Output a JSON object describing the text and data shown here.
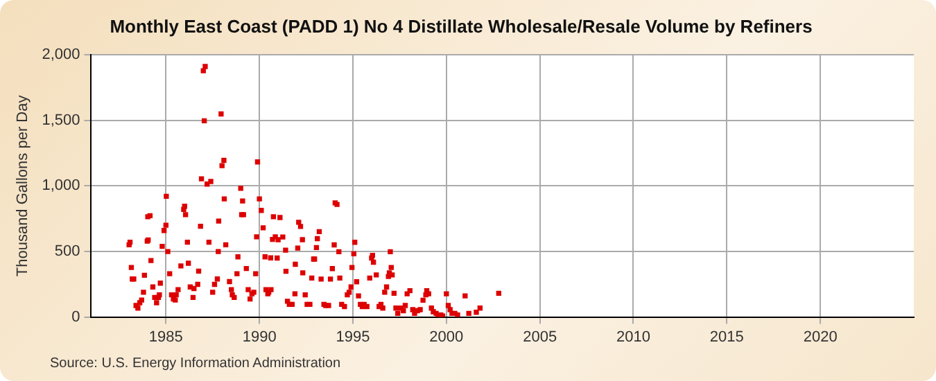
{
  "chart_data": {
    "type": "scatter",
    "title": "Monthly East Coast (PADD 1) No 4 Distillate Wholesale/Resale Volume by Refiners",
    "ylabel": "Thousand Gallons per Day",
    "annotations": [
      "Source: U.S. Energy Information Administration"
    ],
    "marker": "square",
    "grid": true,
    "color": "#dd0000",
    "x": [
      1983.03,
      1983.08,
      1983.15,
      1983.2,
      1983.28,
      1983.4,
      1983.5,
      1983.6,
      1983.7,
      1983.8,
      1983.85,
      1984.0,
      1984.05,
      1984.03,
      1984.15,
      1984.2,
      1984.3,
      1984.4,
      1984.5,
      1984.6,
      1984.65,
      1984.7,
      1984.8,
      1984.9,
      1985.0,
      1985.02,
      1985.1,
      1985.2,
      1985.3,
      1985.4,
      1985.5,
      1985.55,
      1985.65,
      1985.8,
      1985.95,
      1986.0,
      1986.05,
      1986.15,
      1986.2,
      1986.3,
      1986.45,
      1986.5,
      1986.7,
      1986.75,
      1986.85,
      1986.9,
      1987.0,
      1987.1,
      1987.05,
      1987.2,
      1987.4,
      1987.3,
      1987.5,
      1987.6,
      1987.75,
      1987.8,
      1987.82,
      1987.95,
      1988.0,
      1988.1,
      1988.12,
      1988.2,
      1988.4,
      1988.5,
      1988.55,
      1988.65,
      1988.8,
      1988.85,
      1989.0,
      1989.05,
      1989.1,
      1989.15,
      1989.3,
      1989.4,
      1989.5,
      1989.6,
      1989.7,
      1989.8,
      1989.85,
      1989.9,
      1990.0,
      1990.1,
      1990.2,
      1990.3,
      1990.35,
      1990.45,
      1990.5,
      1990.6,
      1990.62,
      1990.7,
      1990.75,
      1990.85,
      1990.95,
      1991.1,
      1991.0,
      1991.25,
      1991.4,
      1991.42,
      1991.5,
      1991.6,
      1991.75,
      1991.9,
      1991.92,
      1992.05,
      1992.1,
      1992.2,
      1992.3,
      1992.32,
      1992.45,
      1992.55,
      1992.7,
      1992.8,
      1992.9,
      1992.95,
      1993.05,
      1993.1,
      1993.2,
      1993.3,
      1993.45,
      1993.55,
      1993.7,
      1993.8,
      1993.9,
      1994.0,
      1994.05,
      1994.15,
      1994.25,
      1994.3,
      1994.4,
      1994.55,
      1994.7,
      1994.8,
      1994.9,
      1994.95,
      1995.05,
      1995.1,
      1995.2,
      1995.3,
      1995.4,
      1995.5,
      1995.6,
      1995.75,
      1995.9,
      1996.0,
      1996.05,
      1996.1,
      1996.25,
      1996.4,
      1996.5,
      1996.6,
      1996.7,
      1996.8,
      1996.9,
      1996.95,
      1997.0,
      1997.05,
      1997.1,
      1997.2,
      1997.3,
      1997.4,
      1997.55,
      1997.7,
      1997.8,
      1997.9,
      1998.05,
      1998.2,
      1998.3,
      1998.45,
      1998.6,
      1998.75,
      1998.9,
      1998.95,
      1999.05,
      1999.2,
      1999.3,
      1999.45,
      1999.55,
      1999.7,
      1999.8,
      2000.0,
      2000.1,
      2000.2,
      2000.3,
      2000.45,
      2000.6,
      2001.0,
      2001.2,
      2001.6,
      2001.8,
      2002.8
    ],
    "values": [
      551,
      571,
      378,
      290,
      290,
      88,
      68,
      109,
      129,
      189,
      318,
      579,
      587,
      765,
      773,
      431,
      229,
      149,
      109,
      149,
      169,
      258,
      539,
      660,
      700,
      921,
      499,
      330,
      169,
      137,
      129,
      169,
      209,
      390,
      821,
      845,
      781,
      571,
      410,
      229,
      149,
      217,
      249,
      350,
      692,
      1054,
      1879,
      1911,
      1497,
      1014,
      1034,
      571,
      189,
      249,
      290,
      499,
      732,
      1549,
      1155,
      1195,
      901,
      551,
      270,
      209,
      169,
      149,
      330,
      459,
      982,
      781,
      885,
      781,
      370,
      209,
      137,
      177,
      189,
      330,
      612,
      1183,
      901,
      813,
      680,
      459,
      209,
      177,
      189,
      451,
      209,
      592,
      765,
      612,
      450,
      759,
      590,
      610,
      510,
      349,
      120,
      96,
      96,
      177,
      402,
      526,
      723,
      691,
      590,
      337,
      169,
      96,
      96,
      297,
      442,
      442,
      530,
      598,
      651,
      289,
      96,
      88,
      88,
      289,
      369,
      550,
      871,
      859,
      498,
      297,
      96,
      80,
      169,
      189,
      229,
      378,
      482,
      570,
      269,
      161,
      96,
      80,
      96,
      80,
      297,
      450,
      470,
      418,
      321,
      80,
      96,
      68,
      189,
      229,
      309,
      337,
      498,
      378,
      321,
      181,
      68,
      28,
      68,
      48,
      88,
      177,
      201,
      56,
      28,
      48,
      56,
      128,
      169,
      201,
      177,
      68,
      40,
      28,
      16,
      16,
      8,
      177,
      88,
      56,
      28,
      28,
      16,
      161,
      28,
      36,
      68,
      181
    ],
    "xlim": [
      1981,
      2025
    ],
    "xticks": [
      1985,
      1990,
      1995,
      2000,
      2005,
      2010,
      2015,
      2020
    ],
    "ylim": [
      0,
      2000
    ],
    "yticks": [
      0,
      500,
      {
        "value": 1000,
        "label": "1,000"
      },
      {
        "value": 1500,
        "label": "1,500"
      },
      {
        "value": 2000,
        "label": "2,000"
      }
    ]
  }
}
